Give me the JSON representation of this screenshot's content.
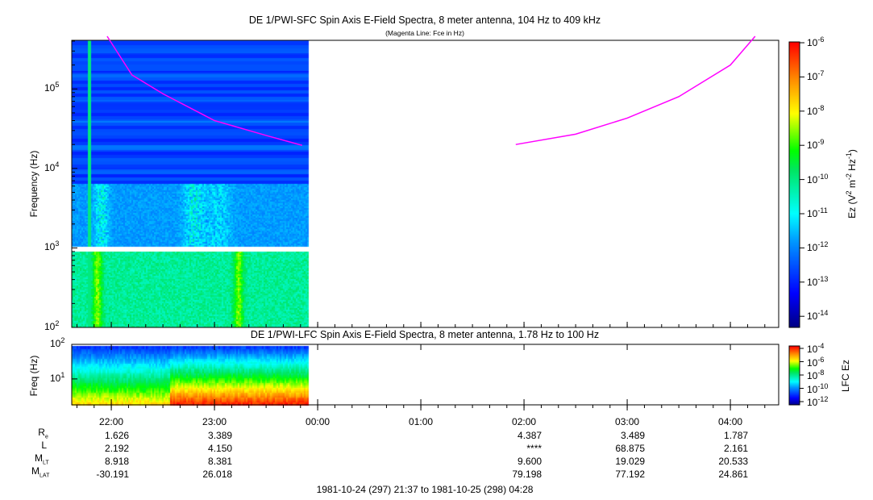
{
  "chart_data": [
    {
      "type": "heatmap",
      "title": "DE 1/PWI-SFC  Spin Axis E-Field Spectra, 8 meter antenna, 104 Hz to 409 kHz",
      "subtitle": "(Magenta Line: Fce in Hz)",
      "ylabel": "Frequency (Hz)",
      "yscale": "log",
      "ylim": [
        100,
        409000
      ],
      "yticks": [
        {
          "v": 100,
          "e": "2"
        },
        {
          "v": 1000,
          "e": "3"
        },
        {
          "v": 10000,
          "e": "4"
        },
        {
          "v": 100000,
          "e": "5"
        }
      ],
      "xlim_hours": [
        21.617,
        28.467
      ],
      "data_end_hour": 23.9,
      "colorbar": {
        "label_main": "Ez (V",
        "sup1": "2",
        "mid": " m",
        "sup2": "-2",
        "mid2": " Hz",
        "sup3": "-1",
        "end": ")",
        "log_range": [
          -14.4,
          -6
        ],
        "ticks": [
          "-6",
          "-7",
          "-8",
          "-9",
          "-10",
          "-11",
          "-12",
          "-13",
          "-14"
        ]
      },
      "fce_line": {
        "color": "#ff00ff",
        "points_hour_hz": [
          [
            21.96,
            460000
          ],
          [
            22.2,
            150000
          ],
          [
            22.5,
            87000
          ],
          [
            23.0,
            40000
          ],
          [
            23.5,
            26000
          ],
          [
            23.85,
            19500
          ],
          [
            25.92,
            20000
          ],
          [
            26.5,
            27000
          ],
          [
            27.0,
            43000
          ],
          [
            27.5,
            80000
          ],
          [
            28.0,
            200000
          ],
          [
            28.24,
            460000
          ]
        ]
      }
    },
    {
      "type": "heatmap",
      "title": "DE 1/PWI-LFC  Spin Axis E-Field Spectra, 8 meter antenna, 1.78 Hz to 100 Hz",
      "ylabel": "Freq (Hz)",
      "yscale": "log",
      "ylim": [
        1.78,
        100
      ],
      "yticks": [
        {
          "v": 10,
          "e": "1"
        },
        {
          "v": 100,
          "e": "2"
        }
      ],
      "colorbar": {
        "label": "LFC Ez",
        "log_range": [
          -12.3,
          -3.7
        ],
        "ticks": [
          "-4",
          "-6",
          "-8",
          "-10",
          "-12"
        ]
      }
    }
  ],
  "xaxis": {
    "ticks": [
      "22:00",
      "23:00",
      "00:00",
      "01:00",
      "02:00",
      "03:00",
      "04:00"
    ],
    "rows": [
      {
        "label": "R",
        "sub": "e",
        "values": [
          "1.626",
          "3.389",
          "",
          "",
          "4.387",
          "3.489",
          "1.787"
        ]
      },
      {
        "label": "L",
        "sub": "",
        "values": [
          "2.192",
          "4.150",
          "",
          "",
          "****",
          "68.875",
          "2.161"
        ]
      },
      {
        "label": "M",
        "sub": "LT",
        "values": [
          "8.918",
          "8.381",
          "",
          "",
          "9.600",
          "19.029",
          "20.533"
        ]
      },
      {
        "label": "M",
        "sub": "LAT",
        "values": [
          "-30.191",
          "26.018",
          "",
          "",
          "79.198",
          "77.192",
          "24.861"
        ]
      }
    ],
    "range_label": "1981-10-24 (297) 21:37 to 1981-10-25 (298) 04:28"
  }
}
